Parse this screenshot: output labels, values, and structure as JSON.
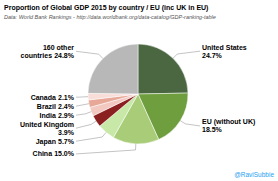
{
  "chart_data": {
    "type": "pie",
    "title": "Proportion of Global GDP 2015 by country / EU (inc UK in EU)",
    "subtitle": "Data: World Bank Rankings - http://data.worldbank.org/data-catalog/GDP-ranking-table",
    "annotations": [
      "@RaviSubbie"
    ],
    "categories": [
      "United States",
      "EU (without UK)",
      "China",
      "Japan",
      "United Kingdom",
      "India",
      "Brazil",
      "Canada",
      "160 other\ncountries"
    ],
    "values": [
      24.7,
      18.5,
      15.0,
      5.7,
      3.9,
      2.9,
      2.4,
      2.1,
      24.8
    ],
    "value_labels": [
      "24.7%",
      "18.5%",
      "15.0%",
      "5.7%",
      "3.9%",
      "2.9%",
      "2.4%",
      "2.1%",
      "24.8%"
    ],
    "colors": [
      "#4a6741",
      "#6e9e3e",
      "#a8cc78",
      "#c8e8a8",
      "#8b2020",
      "#f2c8c0",
      "#e8a898",
      "#f8ddd8",
      "#b8b8b8"
    ],
    "data_labels": true
  }
}
